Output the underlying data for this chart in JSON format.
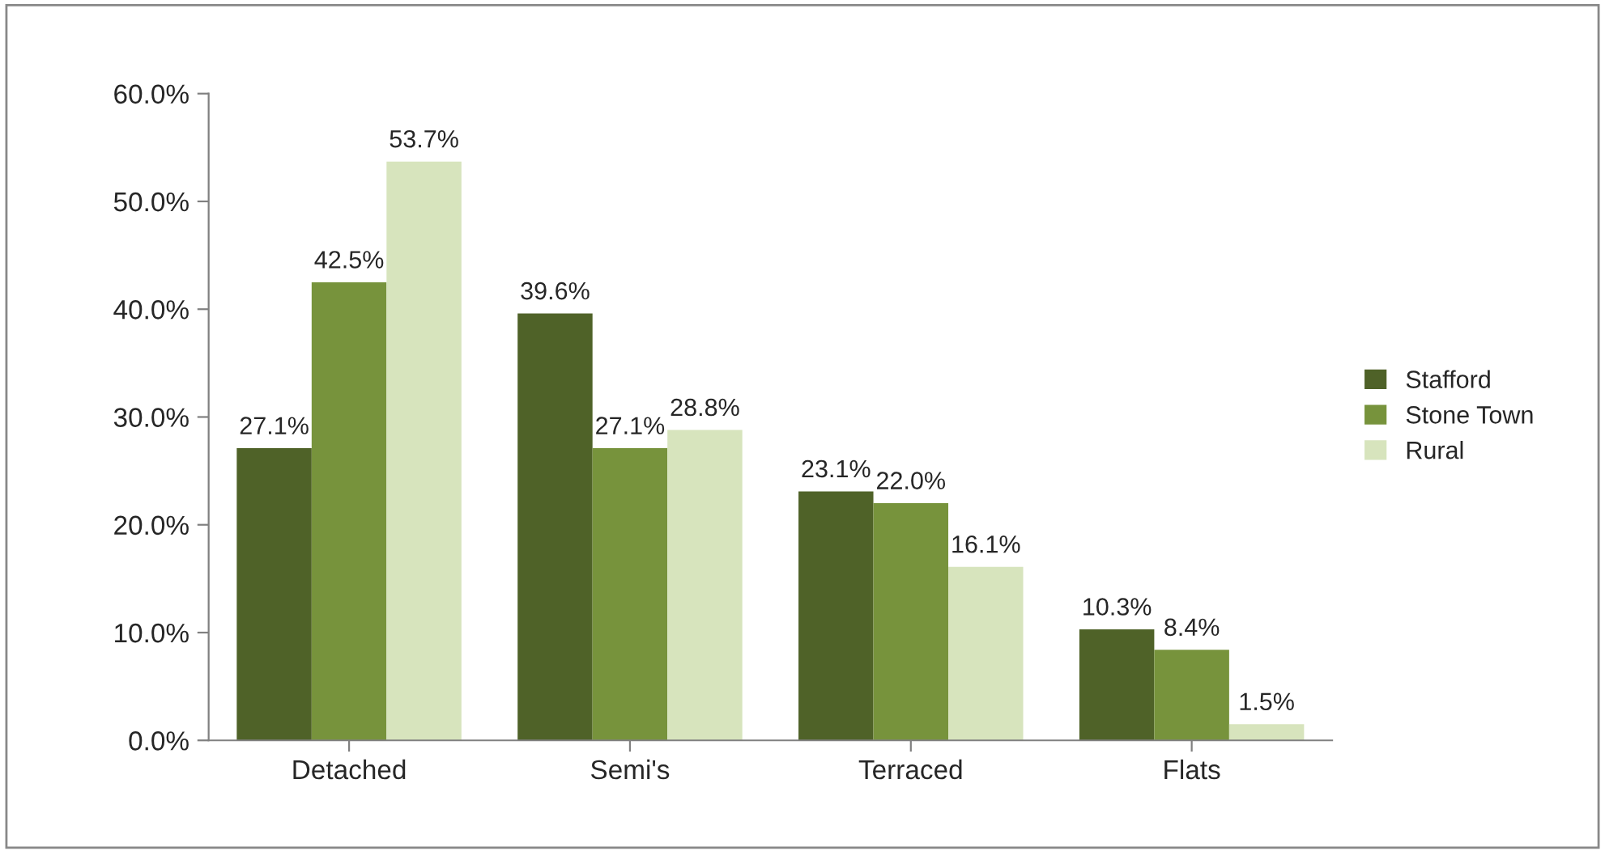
{
  "chart_data": {
    "type": "bar",
    "categories": [
      "Detached",
      "Semi's",
      "Terraced",
      "Flats"
    ],
    "series": [
      {
        "name": "Stafford",
        "color": "#4f6228",
        "values": [
          27.1,
          39.6,
          23.1,
          10.3
        ],
        "value_labels": [
          "27.1%",
          "39.6%",
          "23.1%",
          "10.3%"
        ]
      },
      {
        "name": "Stone Town",
        "color": "#77933c",
        "values": [
          42.5,
          27.1,
          22.0,
          8.4
        ],
        "value_labels": [
          "42.5%",
          "27.1%",
          "22.0%",
          "8.4%"
        ]
      },
      {
        "name": "Rural",
        "color": "#d7e4bd",
        "values": [
          53.7,
          28.8,
          16.1,
          1.5
        ],
        "value_labels": [
          "53.7%",
          "28.8%",
          "16.1%",
          "1.5%"
        ]
      }
    ],
    "ylim": [
      0,
      60
    ],
    "yticks": [
      {
        "value": 0,
        "label": "0.0%"
      },
      {
        "value": 10,
        "label": "10.0%"
      },
      {
        "value": 20,
        "label": "20.0%"
      },
      {
        "value": 30,
        "label": "30.0%"
      },
      {
        "value": 40,
        "label": "40.0%"
      },
      {
        "value": 50,
        "label": "50.0%"
      },
      {
        "value": 60,
        "label": "60.0%"
      }
    ],
    "grid": false,
    "legend": "right"
  }
}
